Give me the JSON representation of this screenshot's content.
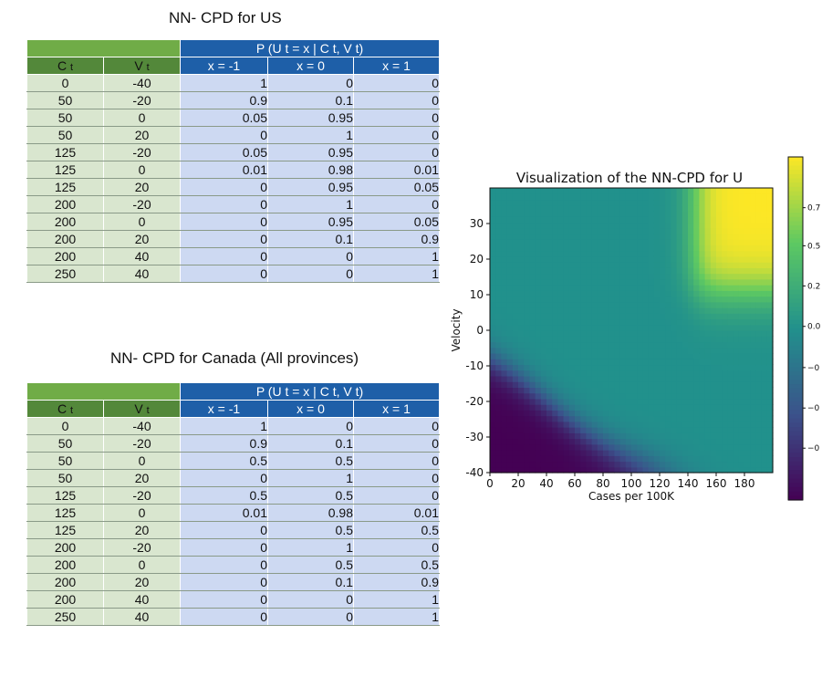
{
  "table_us": {
    "title": "NN- CPD for US",
    "group_header": "P (U t = x | C t, V t)",
    "col_c": "C",
    "col_v": "V",
    "sub_t": "t",
    "x_headers": [
      "x = -1",
      "x = 0",
      "x = 1"
    ],
    "rows": [
      {
        "c": "0",
        "v": "-40",
        "p": [
          "1",
          "0",
          "0"
        ]
      },
      {
        "c": "50",
        "v": "-20",
        "p": [
          "0.9",
          "0.1",
          "0"
        ]
      },
      {
        "c": "50",
        "v": "0",
        "p": [
          "0.05",
          "0.95",
          "0"
        ]
      },
      {
        "c": "50",
        "v": "20",
        "p": [
          "0",
          "1",
          "0"
        ]
      },
      {
        "c": "125",
        "v": "-20",
        "p": [
          "0.05",
          "0.95",
          "0"
        ]
      },
      {
        "c": "125",
        "v": "0",
        "p": [
          "0.01",
          "0.98",
          "0.01"
        ]
      },
      {
        "c": "125",
        "v": "20",
        "p": [
          "0",
          "0.95",
          "0.05"
        ]
      },
      {
        "c": "200",
        "v": "-20",
        "p": [
          "0",
          "1",
          "0"
        ]
      },
      {
        "c": "200",
        "v": "0",
        "p": [
          "0",
          "0.95",
          "0.05"
        ]
      },
      {
        "c": "200",
        "v": "20",
        "p": [
          "0",
          "0.1",
          "0.9"
        ]
      },
      {
        "c": "200",
        "v": "40",
        "p": [
          "0",
          "0",
          "1"
        ]
      },
      {
        "c": "250",
        "v": "40",
        "p": [
          "0",
          "0",
          "1"
        ]
      }
    ]
  },
  "table_canada": {
    "title": "NN- CPD for Canada (All provinces)",
    "group_header": "P (U t = x | C t, V t)",
    "col_c": "C",
    "col_v": "V",
    "sub_t": "t",
    "x_headers": [
      "x = -1",
      "x = 0",
      "x = 1"
    ],
    "rows": [
      {
        "c": "0",
        "v": "-40",
        "p": [
          "1",
          "0",
          "0"
        ]
      },
      {
        "c": "50",
        "v": "-20",
        "p": [
          "0.9",
          "0.1",
          "0"
        ]
      },
      {
        "c": "50",
        "v": "0",
        "p": [
          "0.5",
          "0.5",
          "0"
        ]
      },
      {
        "c": "50",
        "v": "20",
        "p": [
          "0",
          "1",
          "0"
        ]
      },
      {
        "c": "125",
        "v": "-20",
        "p": [
          "0.5",
          "0.5",
          "0"
        ]
      },
      {
        "c": "125",
        "v": "0",
        "p": [
          "0.01",
          "0.98",
          "0.01"
        ]
      },
      {
        "c": "125",
        "v": "20",
        "p": [
          "0",
          "0.5",
          "0.5"
        ]
      },
      {
        "c": "200",
        "v": "-20",
        "p": [
          "0",
          "1",
          "0"
        ]
      },
      {
        "c": "200",
        "v": "0",
        "p": [
          "0",
          "0.5",
          "0.5"
        ]
      },
      {
        "c": "200",
        "v": "20",
        "p": [
          "0",
          "0.1",
          "0.9"
        ]
      },
      {
        "c": "200",
        "v": "40",
        "p": [
          "0",
          "0",
          "1"
        ]
      },
      {
        "c": "250",
        "v": "40",
        "p": [
          "0",
          "0",
          "1"
        ]
      }
    ]
  },
  "chart_data": [
    {
      "type": "table",
      "title": "NN- CPD for US",
      "columns": [
        "C t",
        "V t",
        "x = -1",
        "x = 0",
        "x = 1"
      ],
      "rows": [
        [
          0,
          -40,
          1,
          0,
          0
        ],
        [
          50,
          -20,
          0.9,
          0.1,
          0
        ],
        [
          50,
          0,
          0.05,
          0.95,
          0
        ],
        [
          50,
          20,
          0,
          1,
          0
        ],
        [
          125,
          -20,
          0.05,
          0.95,
          0
        ],
        [
          125,
          0,
          0.01,
          0.98,
          0.01
        ],
        [
          125,
          20,
          0,
          0.95,
          0.05
        ],
        [
          200,
          -20,
          0,
          1,
          0
        ],
        [
          200,
          0,
          0,
          0.95,
          0.05
        ],
        [
          200,
          20,
          0,
          0.1,
          0.9
        ],
        [
          200,
          40,
          0,
          0,
          1
        ],
        [
          250,
          40,
          0,
          0,
          1
        ]
      ]
    },
    {
      "type": "table",
      "title": "NN- CPD for Canada (All provinces)",
      "columns": [
        "C t",
        "V t",
        "x = -1",
        "x = 0",
        "x = 1"
      ],
      "rows": [
        [
          0,
          -40,
          1,
          0,
          0
        ],
        [
          50,
          -20,
          0.9,
          0.1,
          0
        ],
        [
          50,
          0,
          0.5,
          0.5,
          0
        ],
        [
          50,
          20,
          0,
          1,
          0
        ],
        [
          125,
          -20,
          0.5,
          0.5,
          0
        ],
        [
          125,
          0,
          0.01,
          0.98,
          0.01
        ],
        [
          125,
          20,
          0,
          0.5,
          0.5
        ],
        [
          200,
          -20,
          0,
          1,
          0
        ],
        [
          200,
          0,
          0,
          0.5,
          0.5
        ],
        [
          200,
          20,
          0,
          0.1,
          0.9
        ],
        [
          200,
          40,
          0,
          0,
          1
        ],
        [
          250,
          40,
          0,
          0,
          1
        ]
      ]
    },
    {
      "type": "heatmap",
      "title": "Visualization of the NN-CPD for U",
      "xlabel": "Cases per 100K",
      "ylabel": "Velocity",
      "xlim": [
        0,
        200
      ],
      "ylim": [
        -40,
        40
      ],
      "xticks": [
        "0",
        "20",
        "40",
        "60",
        "80",
        "100",
        "120",
        "140",
        "160",
        "180"
      ],
      "yticks": [
        "-40",
        "-30",
        "-20",
        "-10",
        "0",
        "10",
        "20",
        "30"
      ],
      "colorbar_ticks": [
        "0.7",
        "0.5",
        "0.2",
        "0.0",
        "−0",
        "−0",
        "−0"
      ],
      "colorbar_range": [
        -0.9,
        0.9
      ],
      "regions": [
        {
          "name": "high",
          "value": 0.9,
          "location": "top-right (cases > 140, velocity > 10)"
        },
        {
          "name": "low",
          "value": -0.9,
          "location": "bottom-left (cases < 120, velocity < 0)"
        },
        {
          "name": "neutral",
          "value": 0.0,
          "location": "elsewhere"
        }
      ],
      "colormap": "viridis",
      "grid": false
    }
  ]
}
